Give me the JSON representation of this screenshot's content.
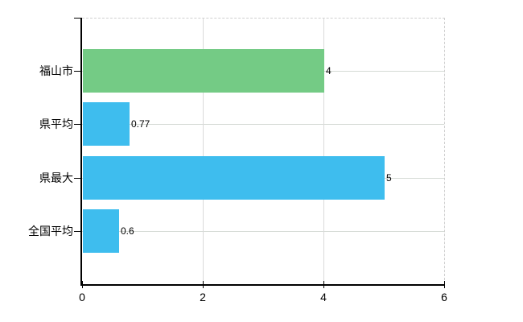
{
  "chart_data": {
    "type": "bar",
    "orientation": "horizontal",
    "title": "",
    "xlabel": "",
    "ylabel": "",
    "categories": [
      "福山市",
      "県平均",
      "県最大",
      "全国平均"
    ],
    "values": [
      4,
      0.77,
      5,
      0.6
    ],
    "value_labels": [
      "4",
      "0.77",
      "5",
      "0.6"
    ],
    "bar_colors": [
      "#74cb85",
      "#3ebdee",
      "#3ebdee",
      "#3ebdee"
    ],
    "xlim": [
      0,
      6
    ],
    "x_ticks": [
      0,
      2,
      4,
      6
    ],
    "x_tick_labels": [
      "0",
      "2",
      "4",
      "6"
    ],
    "grid": true,
    "legend": false
  },
  "colors": {
    "background": "#ffffff",
    "axis": "#000000",
    "grid_horizontal": "#d5dad5",
    "grid_vertical": "#dadada",
    "frame_dashed": "#cfcfcf",
    "text": "#000000",
    "bar_green": "#74cb85",
    "bar_blue": "#3ebdee"
  }
}
